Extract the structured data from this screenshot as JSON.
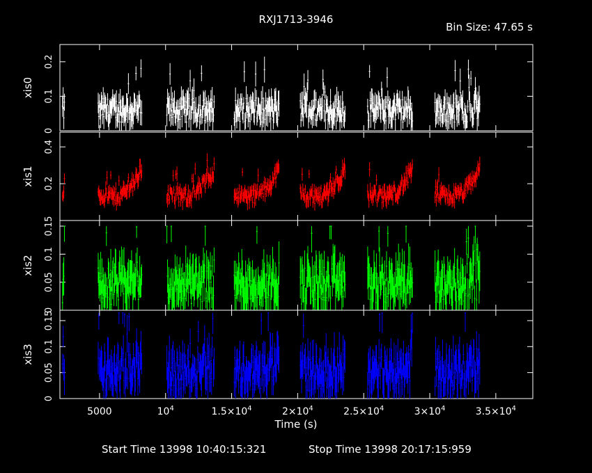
{
  "chart_data": {
    "type": "line",
    "title": "RXJ1713-3946",
    "bin_size_label": "Bin Size: 47.65 s",
    "xlabel": "Time (s)",
    "xlim": [
      2000,
      37800
    ],
    "x_ticks": [
      {
        "value": 5000,
        "label": "5000",
        "exp": ""
      },
      {
        "value": 10000,
        "label": "10",
        "exp": "4"
      },
      {
        "value": 15000,
        "label": "1.5×10",
        "exp": "4"
      },
      {
        "value": 20000,
        "label": "2×10",
        "exp": "4"
      },
      {
        "value": 25000,
        "label": "2.5×10",
        "exp": "4"
      },
      {
        "value": 30000,
        "label": "3×10",
        "exp": "4"
      },
      {
        "value": 35000,
        "label": "3.5×10",
        "exp": "4"
      }
    ],
    "footer": {
      "start": "Start Time 13998 10:40:15:321",
      "stop": "Stop Time 13998 20:17:15:959"
    },
    "segments": [
      [
        2200,
        2350
      ],
      [
        4900,
        8200
      ],
      [
        10100,
        13700
      ],
      [
        15200,
        18600
      ],
      [
        20200,
        23600
      ],
      [
        25300,
        28700
      ],
      [
        30400,
        33800
      ]
    ],
    "series": [
      {
        "name": "xis0",
        "color": "#ffffff",
        "ylim": [
          0,
          0.25
        ],
        "ticks": [
          {
            "v": 0,
            "l": "0"
          },
          {
            "v": 0.1,
            "l": "0.1"
          },
          {
            "v": 0.2,
            "l": "0.2"
          }
        ],
        "base": 0.06,
        "noise": 0.035,
        "trend": 0.0,
        "max": 0.23
      },
      {
        "name": "xis1",
        "color": "#ff0000",
        "ylim": [
          0,
          0.48
        ],
        "ticks": [
          {
            "v": 0.2,
            "l": "0.2"
          },
          {
            "v": 0.4,
            "l": "0.4"
          }
        ],
        "base": 0.13,
        "noise": 0.04,
        "trend": 0.15,
        "max": 0.47
      },
      {
        "name": "xis2",
        "color": "#00ff00",
        "ylim": [
          0,
          0.16
        ],
        "ticks": [
          {
            "v": 0,
            "l": "0"
          },
          {
            "v": 0.05,
            "l": "0.05"
          },
          {
            "v": 0.1,
            "l": "0.1"
          },
          {
            "v": 0.15,
            "l": "0.15"
          }
        ],
        "base": 0.045,
        "noise": 0.035,
        "trend": 0.01,
        "max": 0.15
      },
      {
        "name": "xis3",
        "color": "#0000ff",
        "ylim": [
          0,
          0.17
        ],
        "ticks": [
          {
            "v": 0,
            "l": "0"
          },
          {
            "v": 0.05,
            "l": "0.05"
          },
          {
            "v": 0.1,
            "l": "0.1"
          },
          {
            "v": 0.15,
            "l": "0.15"
          }
        ],
        "base": 0.05,
        "noise": 0.035,
        "trend": 0.02,
        "max": 0.165
      }
    ]
  }
}
